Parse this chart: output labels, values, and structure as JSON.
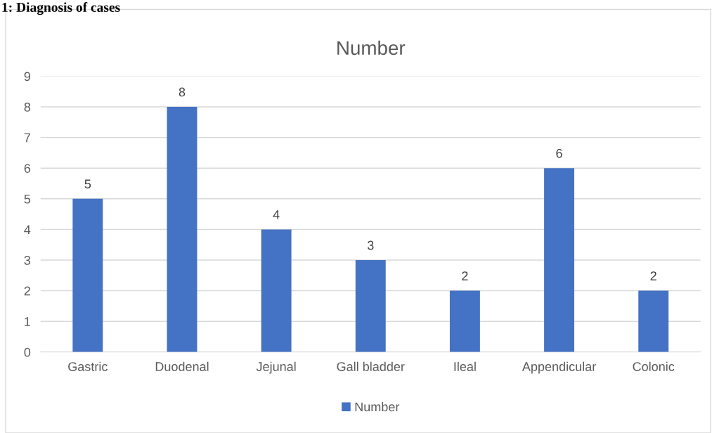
{
  "chart_data": {
    "type": "bar",
    "title": "Number",
    "annotations": [
      "1: Diagnosis of cases"
    ],
    "categories": [
      "Gastric",
      "Duodenal",
      "Jejunal",
      "Gall bladder",
      "Ileal",
      "Appendicular",
      "Colonic"
    ],
    "series": [
      {
        "name": "Number",
        "color": "#4472c4",
        "values": [
          5,
          8,
          4,
          3,
          2,
          6,
          2
        ]
      }
    ],
    "ylim": [
      0,
      9
    ],
    "yticks": [
      0,
      1,
      2,
      3,
      4,
      5,
      6,
      7,
      8,
      9
    ],
    "grid": "y",
    "legend": "bottom",
    "data_labels": true
  }
}
